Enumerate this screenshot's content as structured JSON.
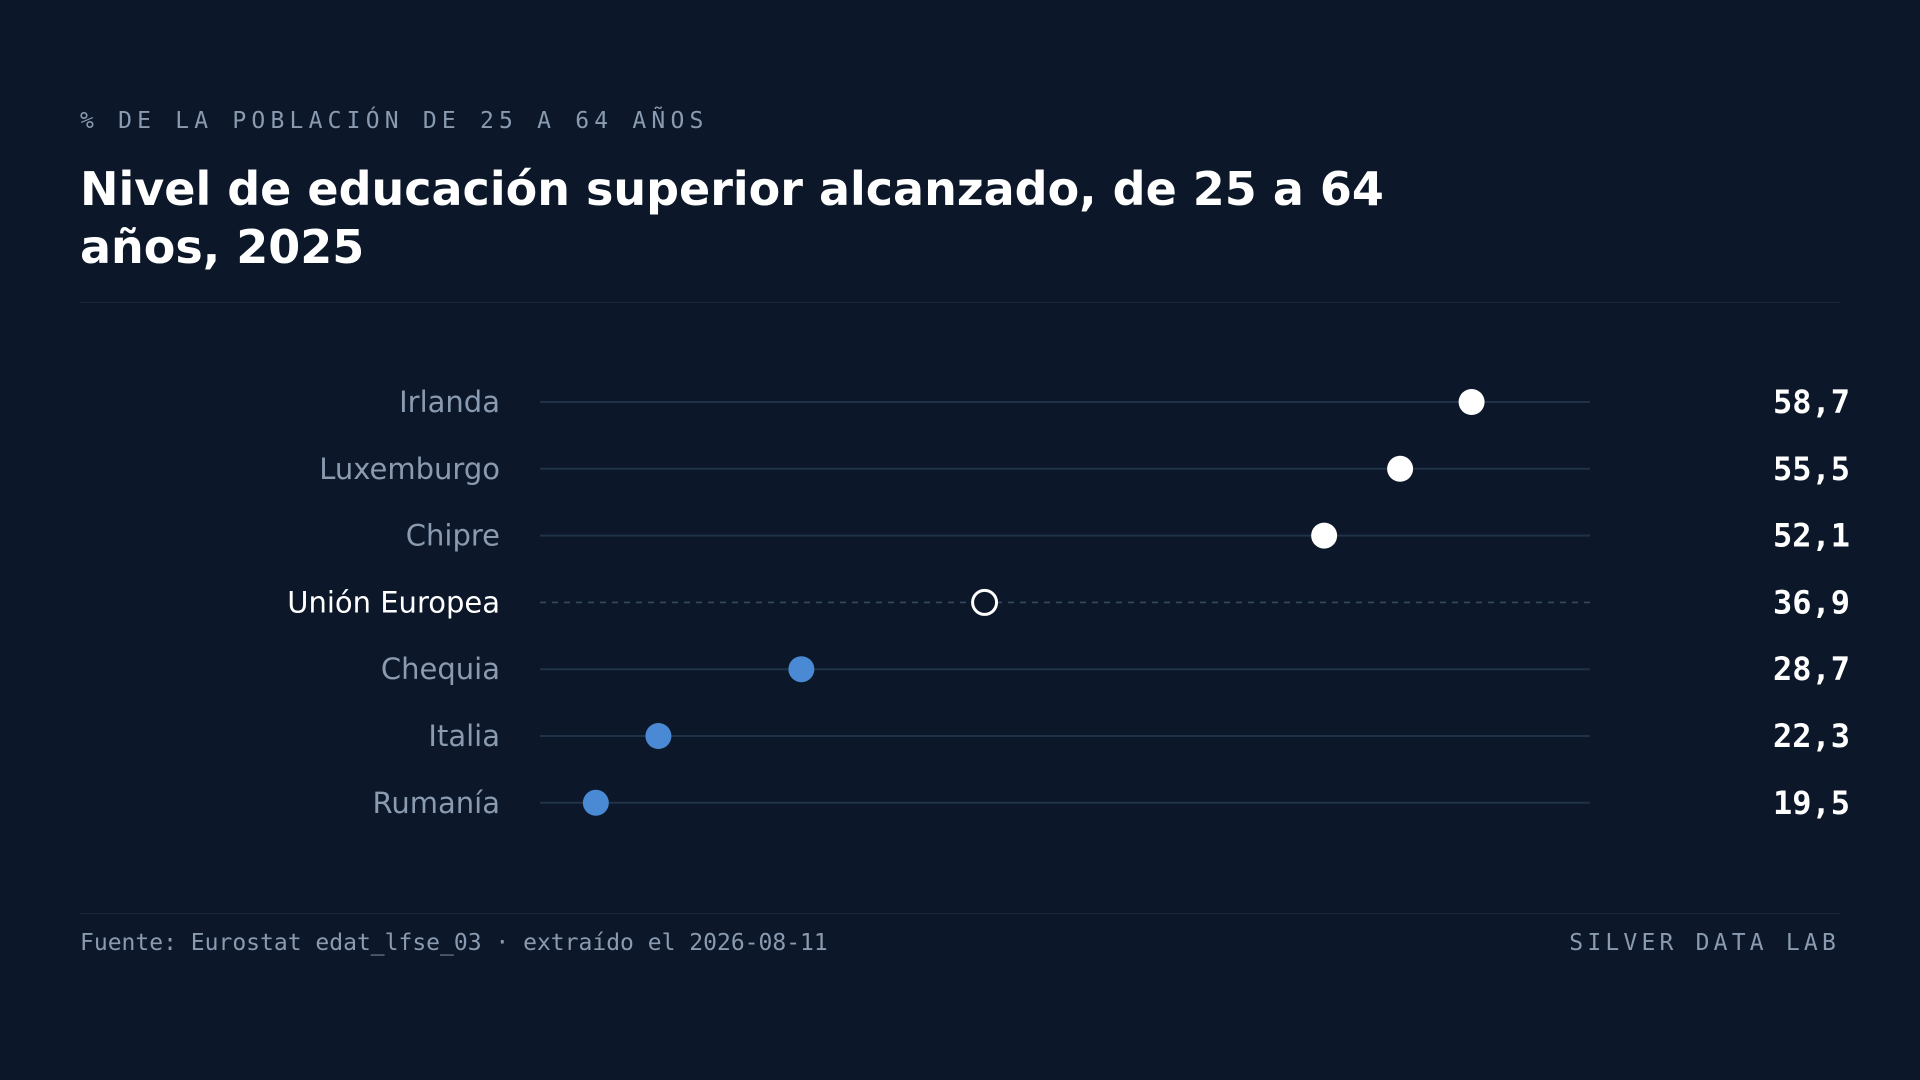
{
  "header": {
    "eyebrow": "% DE LA POBLACIÓN DE 25 A 64 AÑOS",
    "title": "Nivel de educación superior alcanzado, de 25 a 64 años, 2025"
  },
  "footer": {
    "source": "Fuente: Eurostat edat_lfse_03 · extraído el 2026-08-11",
    "brand": "SILVER DATA LAB"
  },
  "colors": {
    "background": "#0c1829",
    "high": "#ffffff",
    "low": "#4a8ad4",
    "reference": "#ffffff",
    "track": "#1f3247",
    "label": "#8a9ab0",
    "reference_label": "#ffffff",
    "value": "#ffffff"
  },
  "chart_data": {
    "type": "dot",
    "xlim": [
      17,
      64
    ],
    "grid": false,
    "categories": [
      "Irlanda",
      "Luxemburgo",
      "Chipre",
      "Unión Europea",
      "Chequia",
      "Italia",
      "Rumanía"
    ],
    "values": [
      58.7,
      55.5,
      52.1,
      36.9,
      28.7,
      22.3,
      19.5
    ],
    "value_labels": [
      "58,7",
      "55,5",
      "52,1",
      "36,9",
      "28,7",
      "22,3",
      "19,5"
    ],
    "highlight": [
      "high",
      "high",
      "high",
      "reference",
      "low",
      "low",
      "low"
    ]
  }
}
